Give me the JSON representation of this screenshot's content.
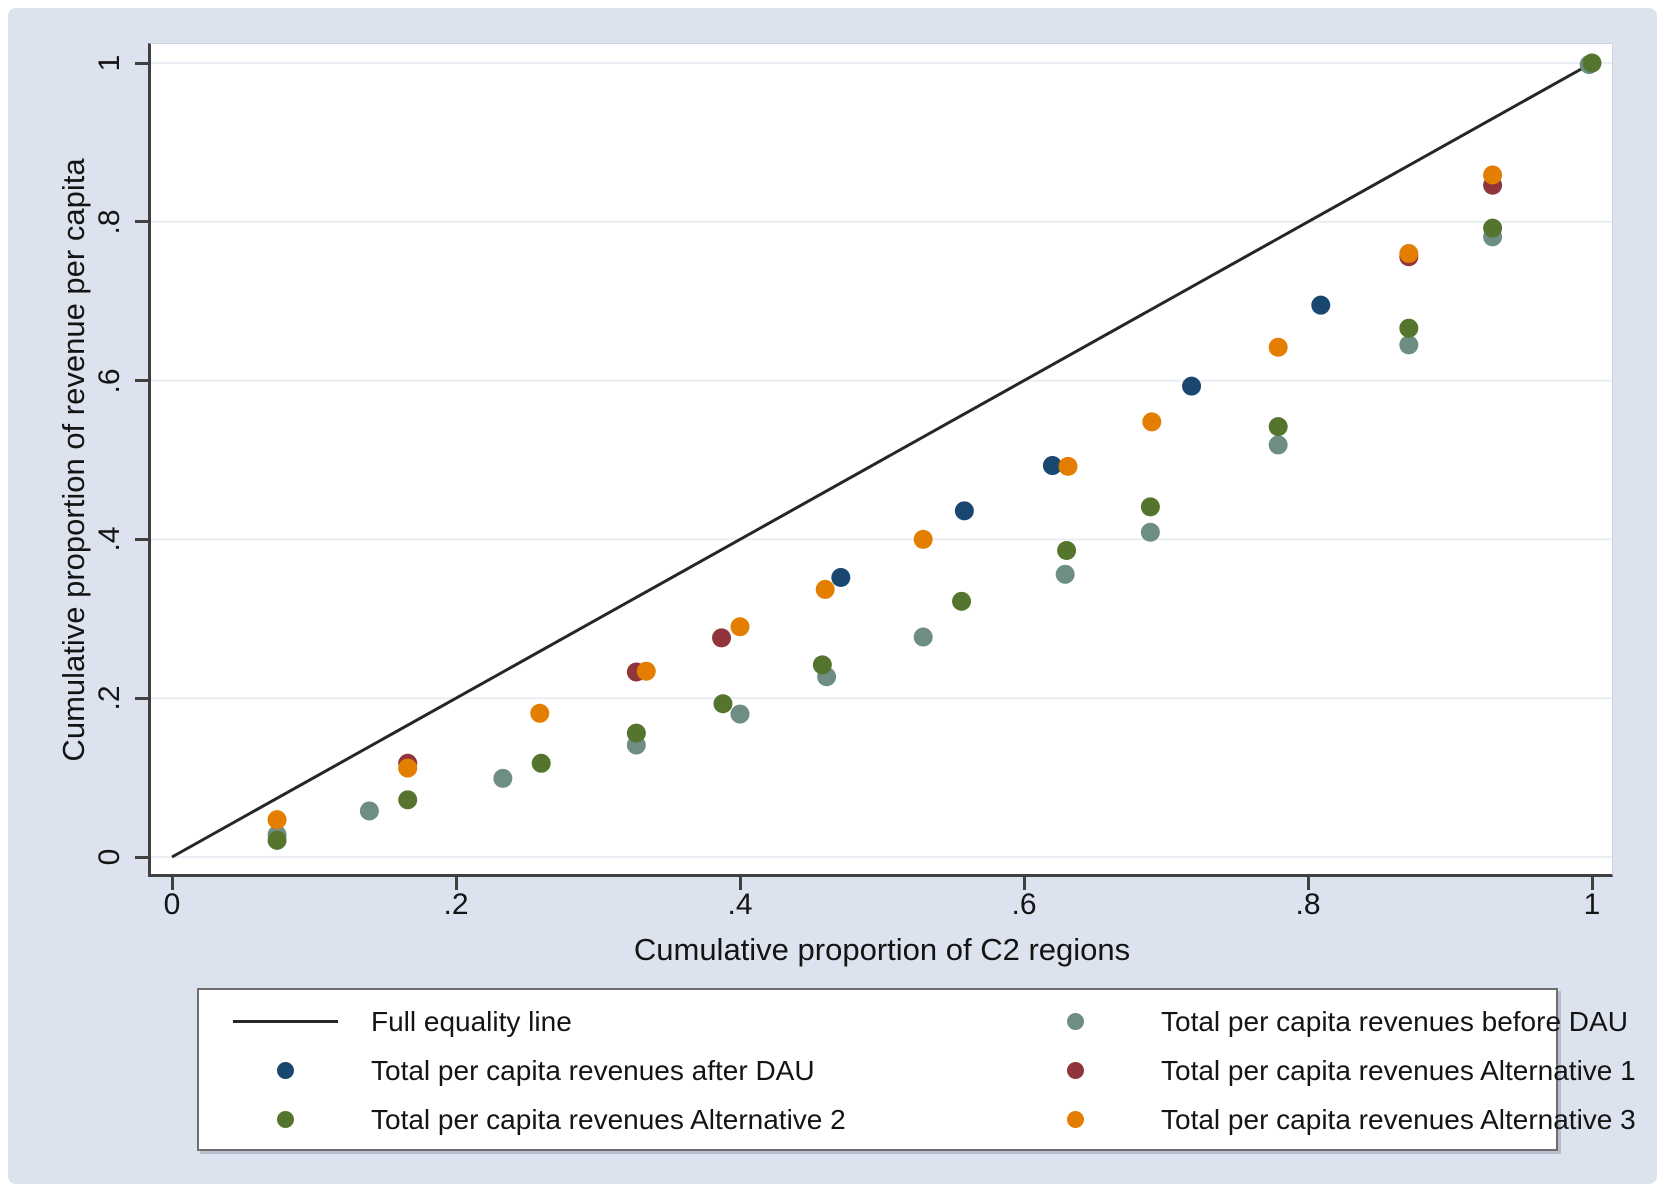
{
  "figure": {
    "background_color": "#dce3ee",
    "plot_background": "#ffffff",
    "grid_color": "#e9edf4",
    "axis_line_color": "#404040",
    "text_color": "#141414"
  },
  "chart_data": {
    "type": "scatter",
    "title": "",
    "xlabel": "Cumulative proportion of C2 regions",
    "ylabel": "Cumulative proportion of revenue per capita",
    "xlim": [
      0,
      1
    ],
    "ylim": [
      0,
      1
    ],
    "grid": "horizontal",
    "legend_position": "bottom",
    "x_ticks": [
      {
        "label": "0",
        "value": 0
      },
      {
        "label": ".2",
        "value": 0.2
      },
      {
        "label": ".4",
        "value": 0.4
      },
      {
        "label": ".6",
        "value": 0.6
      },
      {
        "label": ".8",
        "value": 0.8
      },
      {
        "label": "1",
        "value": 1
      }
    ],
    "y_ticks": [
      {
        "label": "0",
        "value": 0
      },
      {
        "label": ".2",
        "value": 0.2
      },
      {
        "label": ".4",
        "value": 0.4
      },
      {
        "label": ".6",
        "value": 0.6
      },
      {
        "label": ".8",
        "value": 0.8
      },
      {
        "label": "1",
        "value": 1
      }
    ],
    "reference_line": {
      "name": "Full equality line",
      "color": "#262626",
      "from": [
        0,
        0
      ],
      "to": [
        1,
        1
      ]
    },
    "series": [
      {
        "name": "Total per capita revenues before DAU",
        "color": "#6e8e84",
        "points": [
          [
            0.074,
            0.028
          ],
          [
            0.139,
            0.058
          ],
          [
            0.233,
            0.099
          ],
          [
            0.327,
            0.141
          ],
          [
            0.4,
            0.18
          ],
          [
            0.461,
            0.227
          ],
          [
            0.529,
            0.277
          ],
          [
            0.629,
            0.356
          ],
          [
            0.689,
            0.409
          ],
          [
            0.779,
            0.519
          ],
          [
            0.871,
            0.645
          ],
          [
            0.93,
            0.781
          ],
          [
            0.998,
            0.998
          ]
        ]
      },
      {
        "name": "Total per capita revenues Alternative 2",
        "color": "#55752f",
        "points": [
          [
            0.074,
            0.021
          ],
          [
            0.166,
            0.072
          ],
          [
            0.26,
            0.118
          ],
          [
            0.327,
            0.156
          ],
          [
            0.388,
            0.193
          ],
          [
            0.458,
            0.242
          ],
          [
            0.556,
            0.322
          ],
          [
            0.63,
            0.386
          ],
          [
            0.689,
            0.441
          ],
          [
            0.779,
            0.542
          ],
          [
            0.871,
            0.666
          ],
          [
            0.93,
            0.792
          ],
          [
            1.0,
            1.0
          ]
        ]
      },
      {
        "name": "Total per capita revenues after DAU",
        "color": "#1a476f",
        "points": [
          [
            0.471,
            0.352
          ],
          [
            0.558,
            0.436
          ],
          [
            0.62,
            0.493
          ],
          [
            0.718,
            0.593
          ],
          [
            0.809,
            0.695
          ]
        ]
      },
      {
        "name": "Total per capita revenues Alternative 1",
        "color": "#90353b",
        "points": [
          [
            0.166,
            0.118
          ],
          [
            0.327,
            0.233
          ],
          [
            0.387,
            0.276
          ],
          [
            0.871,
            0.756
          ],
          [
            0.93,
            0.846
          ]
        ]
      },
      {
        "name": "Total per capita revenues Alternative 3",
        "color": "#e37e00",
        "points": [
          [
            0.074,
            0.047
          ],
          [
            0.166,
            0.112
          ],
          [
            0.259,
            0.181
          ],
          [
            0.334,
            0.234
          ],
          [
            0.4,
            0.29
          ],
          [
            0.46,
            0.337
          ],
          [
            0.529,
            0.4
          ],
          [
            0.631,
            0.492
          ],
          [
            0.69,
            0.548
          ],
          [
            0.779,
            0.642
          ],
          [
            0.871,
            0.76
          ],
          [
            0.93,
            0.859
          ]
        ]
      }
    ]
  },
  "legend": {
    "entries": [
      {
        "marker": "line",
        "color": "#262626",
        "label": "Full equality line"
      },
      {
        "marker": "dot",
        "color": "#6e8e84",
        "label": "Total per capita revenues before DAU"
      },
      {
        "marker": "dot",
        "color": "#1a476f",
        "label": "Total per capita revenues after DAU"
      },
      {
        "marker": "dot",
        "color": "#90353b",
        "label": "Total per capita revenues Alternative 1"
      },
      {
        "marker": "dot",
        "color": "#55752f",
        "label": "Total per capita revenues Alternative 2"
      },
      {
        "marker": "dot",
        "color": "#e37e00",
        "label": "Total per capita revenues Alternative 3"
      }
    ]
  }
}
